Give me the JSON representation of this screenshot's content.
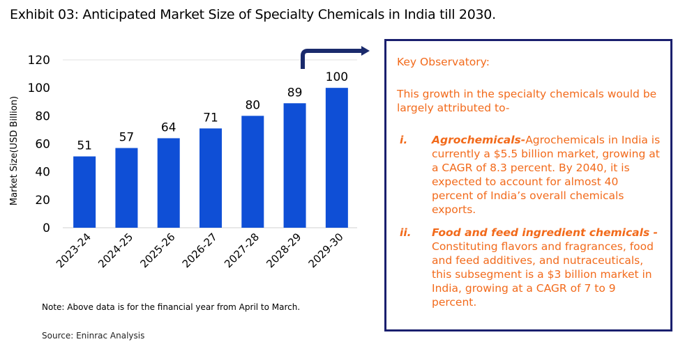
{
  "title": "Exhibit 03: Anticipated Market Size of Specialty Chemicals in India till 2030.",
  "chart_data": {
    "type": "bar",
    "categories": [
      "2023-24",
      "2024-25",
      "2025-26",
      "2026-27",
      "2027-28",
      "2028-29",
      "2029-30"
    ],
    "values": [
      51,
      57,
      64,
      71,
      80,
      89,
      100
    ],
    "xlabel": "",
    "ylabel": "Market Size(USD Billion)",
    "ylim": [
      0,
      120
    ],
    "yticks": [
      0,
      20,
      40,
      60,
      80,
      100,
      120
    ],
    "data_labels": true,
    "grid": false,
    "bar_color": "#0f4fd6",
    "annotation": "arrow-icon"
  },
  "note": "Note: Above data is for the financial year from April to March.",
  "source": "Source: Eninrac Analysis",
  "observatory": {
    "heading": "Key Observatory:",
    "intro": "This growth in the specialty chemicals would be largely attributed to-",
    "items": [
      {
        "num": "i.",
        "bold": "Agrochemicals-",
        "text": "Agrochemicals in India is currently a $5.5 billion market, growing at a CAGR of 8.3 percent. By 2040, it is expected to account for almost 40 percent of India’s overall chemicals exports."
      },
      {
        "num": "ii.",
        "bold": "Food and feed ingredient chemicals -",
        "text": " Constituting flavors and fragrances, food and feed additives, and nutraceuticals, this subsegment is a $3 billion market in India, growing at a CAGR of 7 to 9 percent."
      }
    ],
    "text_color": "#f26a1b",
    "border_color": "#1a1f6e"
  }
}
